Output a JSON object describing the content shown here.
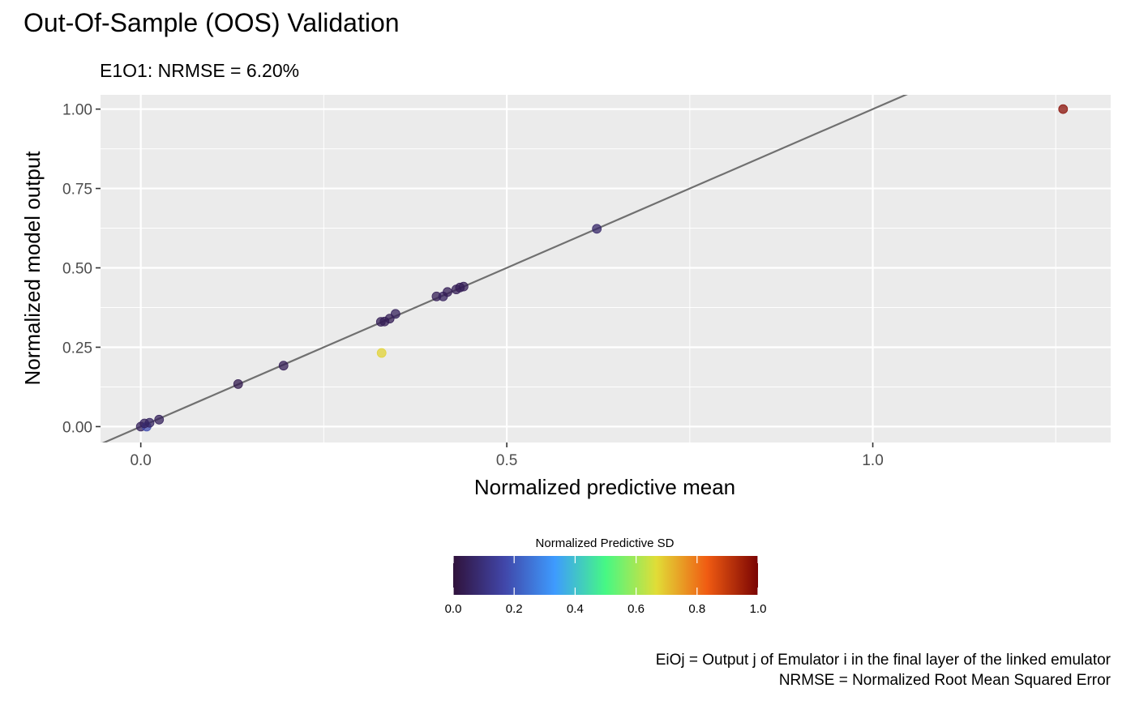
{
  "chart_data": {
    "type": "scatter",
    "title": "Out-Of-Sample (OOS) Validation",
    "subtitle": "E1O1: NRMSE = 6.20%",
    "xlabel": "Normalized predictive mean",
    "ylabel": "Normalized model output",
    "xlim": [
      -0.055,
      1.325
    ],
    "ylim": [
      -0.05,
      1.045
    ],
    "x_ticks": [
      0.0,
      0.5,
      1.0
    ],
    "x_tick_labels": [
      "0.0",
      "0.5",
      "1.0"
    ],
    "y_ticks": [
      0.0,
      0.25,
      0.5,
      0.75,
      1.0
    ],
    "y_tick_labels": [
      "0.00",
      "0.25",
      "0.50",
      "0.75",
      "1.00"
    ],
    "grid": true,
    "reference_line": {
      "slope": 1,
      "intercept": 0,
      "color": "#707070"
    },
    "color_scale": {
      "title": "Normalized Predictive SD",
      "range": [
        0.0,
        1.0
      ],
      "ticks": [
        "0.0",
        "0.2",
        "0.4",
        "0.6",
        "0.8",
        "1.0"
      ],
      "colors": [
        "#30123b",
        "#4146a8",
        "#3e9bfe",
        "#46f884",
        "#e1dd37",
        "#f05b12",
        "#7a0403"
      ],
      "placement": "bottom"
    },
    "points": [
      {
        "x": 0.0,
        "y": 0.0,
        "sd": 0.05
      },
      {
        "x": 0.008,
        "y": 0.0,
        "sd": 0.18
      },
      {
        "x": 0.005,
        "y": 0.01,
        "sd": 0.05
      },
      {
        "x": 0.012,
        "y": 0.012,
        "sd": 0.06
      },
      {
        "x": 0.025,
        "y": 0.022,
        "sd": 0.05
      },
      {
        "x": 0.133,
        "y": 0.134,
        "sd": 0.03
      },
      {
        "x": 0.195,
        "y": 0.192,
        "sd": 0.04
      },
      {
        "x": 0.328,
        "y": 0.33,
        "sd": 0.04
      },
      {
        "x": 0.333,
        "y": 0.331,
        "sd": 0.04
      },
      {
        "x": 0.34,
        "y": 0.34,
        "sd": 0.04
      },
      {
        "x": 0.348,
        "y": 0.355,
        "sd": 0.05
      },
      {
        "x": 0.329,
        "y": 0.232,
        "sd": 0.68
      },
      {
        "x": 0.404,
        "y": 0.41,
        "sd": 0.04
      },
      {
        "x": 0.413,
        "y": 0.41,
        "sd": 0.05
      },
      {
        "x": 0.419,
        "y": 0.424,
        "sd": 0.04
      },
      {
        "x": 0.431,
        "y": 0.432,
        "sd": 0.04
      },
      {
        "x": 0.436,
        "y": 0.438,
        "sd": 0.04
      },
      {
        "x": 0.441,
        "y": 0.441,
        "sd": 0.04
      },
      {
        "x": 0.623,
        "y": 0.623,
        "sd": 0.07
      },
      {
        "x": 1.26,
        "y": 1.0,
        "sd": 0.98
      }
    ]
  },
  "caption": {
    "line1": "EiOj = Output j of Emulator i in the final layer of the linked emulator",
    "line2": "NRMSE = Normalized Root Mean Squared Error"
  }
}
